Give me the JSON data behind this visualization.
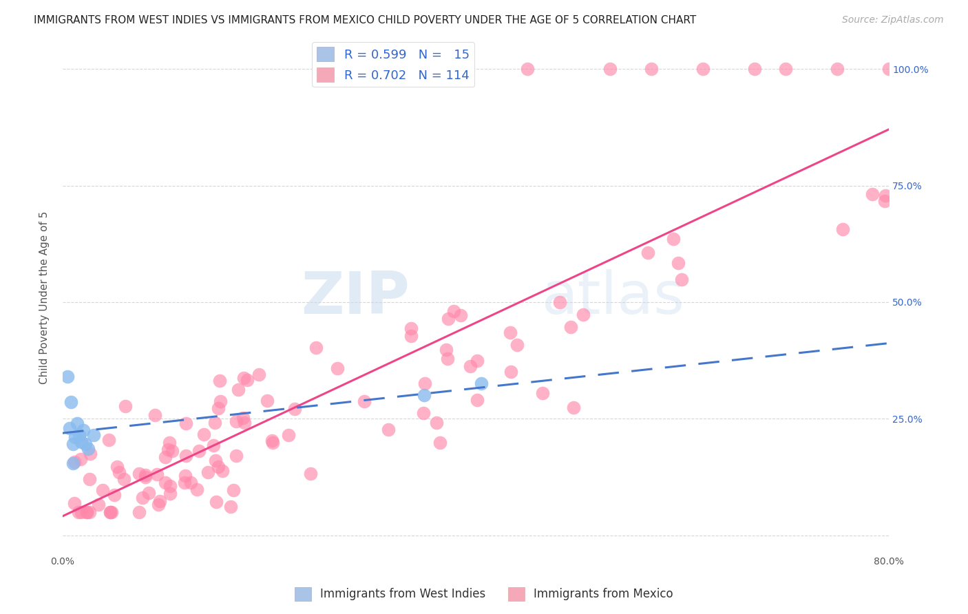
{
  "title": "IMMIGRANTS FROM WEST INDIES VS IMMIGRANTS FROM MEXICO CHILD POVERTY UNDER THE AGE OF 5 CORRELATION CHART",
  "source": "Source: ZipAtlas.com",
  "ylabel": "Child Poverty Under the Age of 5",
  "x_min": 0.0,
  "x_max": 0.8,
  "y_min": -0.04,
  "y_max": 1.06,
  "x_tick_positions": [
    0.0,
    0.1,
    0.2,
    0.3,
    0.4,
    0.5,
    0.6,
    0.7,
    0.8
  ],
  "x_tick_labels": [
    "0.0%",
    "",
    "",
    "",
    "",
    "",
    "",
    "",
    "80.0%"
  ],
  "y_ticks": [
    0.0,
    0.25,
    0.5,
    0.75,
    1.0
  ],
  "y_tick_labels_right": [
    "",
    "25.0%",
    "50.0%",
    "75.0%",
    "100.0%"
  ],
  "grid_color": "#cccccc",
  "legend1_label": "R = 0.599   N =   15",
  "legend2_label": "R = 0.702   N = 114",
  "legend1_color": "#aac4e8",
  "legend2_color": "#f4a8b8",
  "line1_color": "#4477cc",
  "line2_color": "#ee4488",
  "scatter1_color": "#88bbee",
  "scatter2_color": "#ff88aa",
  "background_color": "#ffffff",
  "title_fontsize": 11,
  "axis_label_fontsize": 11,
  "tick_fontsize": 10,
  "legend_fontsize": 13,
  "source_fontsize": 10,
  "wi_intercept": 0.195,
  "wi_slope": 0.38,
  "mex_intercept": 0.05,
  "mex_slope": 0.875
}
